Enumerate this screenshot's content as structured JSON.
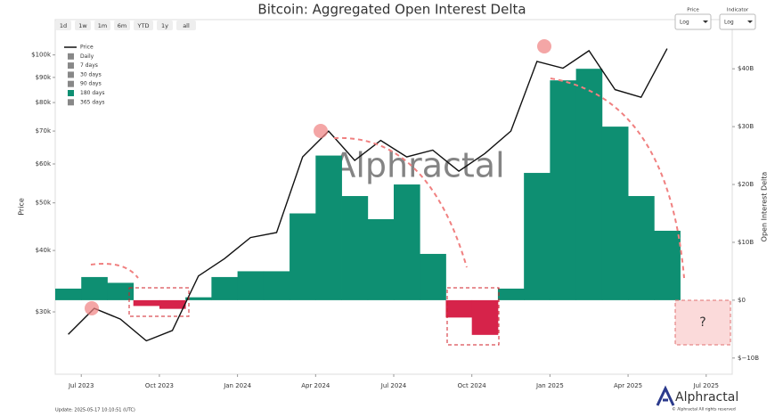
{
  "chart_data": {
    "type": "combo",
    "title": "Bitcoin: Aggregated Open Interest Delta",
    "y_label": "Price",
    "y2_label": "Open Interest Delta",
    "range_buttons": [
      "1d",
      "1w",
      "1m",
      "6m",
      "YTD",
      "1y",
      "all"
    ],
    "controls": [
      {
        "label": "Price",
        "value": "Log"
      },
      {
        "label": "Indicator",
        "value": "Log"
      }
    ],
    "period_options": [
      "Daily",
      "7 days",
      "30 days",
      "90 days",
      "365 days"
    ],
    "watermark": "Alphractal",
    "logo": "Alphractal",
    "copyright": "© Alphractal All rights reserved",
    "update_note": "Update: 2025-05-17 10:10:51 (UTC)",
    "annotation": "?",
    "x": [
      "2023-06",
      "2023-07",
      "2023-08",
      "2023-09",
      "2023-10",
      "2023-11",
      "2023-12",
      "2024-01",
      "2024-02",
      "2024-03",
      "2024-04",
      "2024-05",
      "2024-06",
      "2024-07",
      "2024-08",
      "2024-09",
      "2024-10",
      "2024-11",
      "2024-12",
      "2025-01",
      "2025-02",
      "2025-03",
      "2025-04",
      "2025-05"
    ],
    "xlim": [
      "2023-06",
      "2025-08"
    ],
    "xticks": [
      {
        "value": "2023-07",
        "label": "Jul 2023"
      },
      {
        "value": "2023-10",
        "label": "Oct 2023"
      },
      {
        "value": "2024-01",
        "label": "Jan 2024"
      },
      {
        "value": "2024-04",
        "label": "Apr 2024"
      },
      {
        "value": "2024-07",
        "label": "Jul 2024"
      },
      {
        "value": "2024-10",
        "label": "Oct 2024"
      },
      {
        "value": "2025-01",
        "label": "Jan 2025"
      },
      {
        "value": "2025-04",
        "label": "Apr 2025"
      },
      {
        "value": "2025-07",
        "label": "Jul 2025"
      }
    ],
    "ylim": [
      22400,
      118000
    ],
    "log_y": true,
    "yticks": [
      {
        "value": 30000,
        "label": "$30k"
      },
      {
        "value": 40000,
        "label": "$40k"
      },
      {
        "value": 50000,
        "label": "$50k"
      },
      {
        "value": 60000,
        "label": "$60k"
      },
      {
        "value": 70000,
        "label": "$70k"
      },
      {
        "value": 80000,
        "label": "$80k"
      },
      {
        "value": 90000,
        "label": "$90k"
      },
      {
        "value": 100000,
        "label": "$100k"
      }
    ],
    "y2lim": [
      -12.8,
      48.5
    ],
    "y2ticks": [
      {
        "value": -10,
        "label": "$−10B"
      },
      {
        "value": 0,
        "label": "$0"
      },
      {
        "value": 10,
        "label": "$10B"
      },
      {
        "value": 20,
        "label": "$20B"
      },
      {
        "value": 30,
        "label": "$30B"
      },
      {
        "value": 40,
        "label": "$40B"
      }
    ],
    "series": [
      {
        "name": "Price",
        "type": "line",
        "color": "#111111",
        "values": [
          27000,
          30500,
          29000,
          26200,
          27500,
          35500,
          38500,
          42500,
          43500,
          62000,
          70000,
          61000,
          67000,
          62000,
          64000,
          58000,
          63000,
          70000,
          97000,
          94000,
          102000,
          85000,
          82000,
          103000
        ]
      },
      {
        "name": "180 days",
        "type": "bar",
        "axis": "y2",
        "color": "#0e8f72",
        "negative_color": "#d6234a",
        "values": [
          2,
          4,
          3,
          -1,
          -1.5,
          0.5,
          4,
          5,
          5,
          15,
          25,
          18,
          14,
          20,
          8,
          -3,
          -6,
          2,
          22,
          38,
          40,
          30,
          18,
          12
        ]
      }
    ]
  }
}
